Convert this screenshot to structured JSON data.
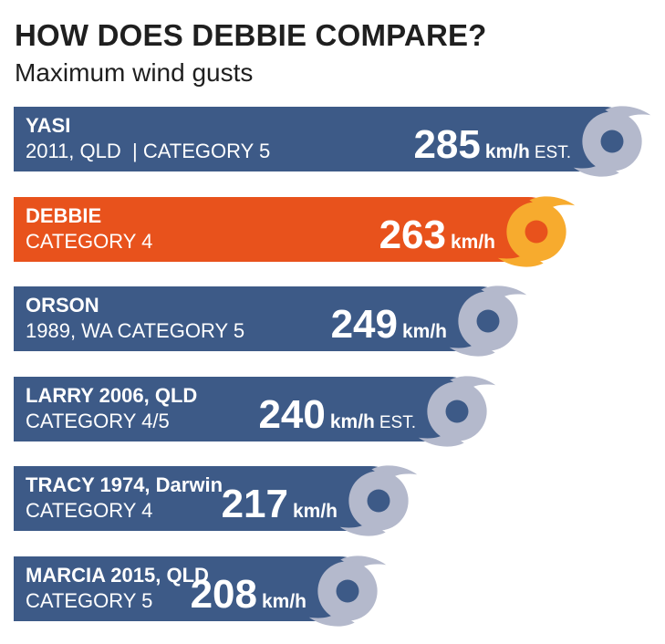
{
  "title": "HOW DOES DEBBIE COMPARE?",
  "subtitle": "Maximum wind gusts",
  "colors": {
    "bar_default": "#3d5a87",
    "bar_highlight": "#e8521c",
    "cyclone_default": "#b4b9cc",
    "cyclone_default_eye": "#3d5a87",
    "cyclone_highlight": "#f7ab2e",
    "cyclone_highlight_eye": "#e8521c"
  },
  "chart_data": {
    "type": "bar",
    "orientation": "horizontal",
    "title": "HOW DOES DEBBIE COMPARE?",
    "subtitle": "Maximum wind gusts",
    "unit": "km/h",
    "categories": [
      "YASI",
      "DEBBIE",
      "ORSON",
      "LARRY 2006, QLD",
      "TRACY 1974, Darwin",
      "MARCIA 2015, QLD"
    ],
    "values": [
      285,
      263,
      249,
      240,
      217,
      208
    ],
    "bars": [
      {
        "name": "YASI",
        "detail": "2011, QLD  | CATEGORY 5",
        "value": 285,
        "value_text": "285",
        "unit": "km/h",
        "note": "EST.",
        "highlight": false
      },
      {
        "name": "DEBBIE",
        "detail": "CATEGORY 4",
        "value": 263,
        "value_text": "263",
        "unit": "km/h",
        "note": "",
        "highlight": true
      },
      {
        "name": "ORSON",
        "detail": "1989, WA CATEGORY 5",
        "value": 249,
        "value_text": "249",
        "unit": "km/h",
        "note": "",
        "highlight": false
      },
      {
        "name": "LARRY 2006, QLD",
        "detail": "CATEGORY 4/5",
        "value": 240,
        "value_text": "240",
        "unit": "km/h",
        "note": "EST.",
        "highlight": false
      },
      {
        "name": "TRACY 1974, Darwin",
        "detail": "CATEGORY 4",
        "value": 217,
        "value_text": "217",
        "unit": "km/h",
        "note": "",
        "highlight": false
      },
      {
        "name": "MARCIA 2015, QLD",
        "detail": "CATEGORY 5",
        "value": 208,
        "value_text": "208",
        "unit": "km/h",
        "note": "",
        "highlight": false
      }
    ]
  }
}
